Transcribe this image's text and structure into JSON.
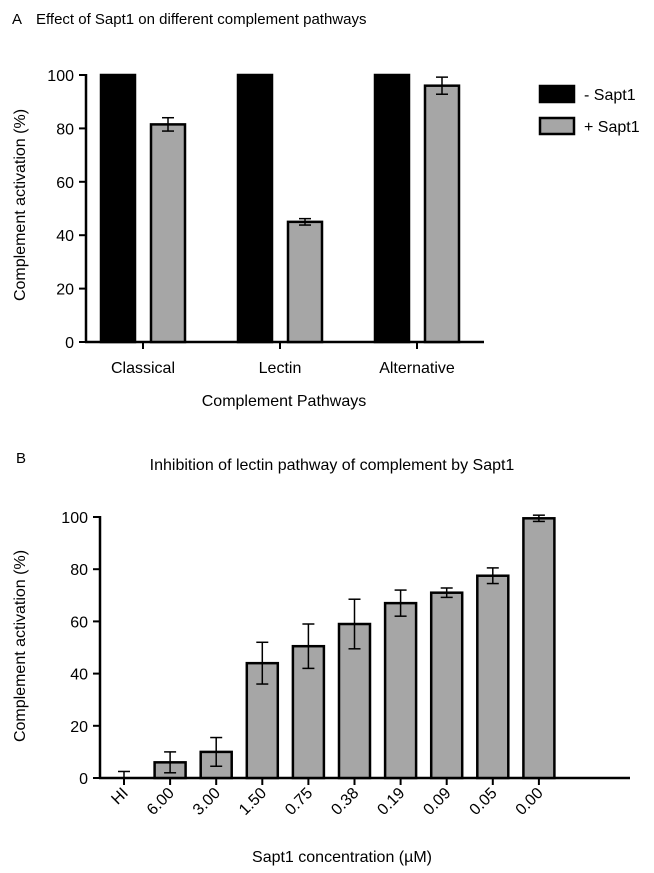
{
  "panels": [
    {
      "letter": "A",
      "chart_data": {
        "type": "bar",
        "title": "Effect of Sapt1 on different complement pathways",
        "xlabel": "Complement Pathways",
        "ylabel": "Complement activation (%)",
        "ylim": [
          0,
          100
        ],
        "yticks": [
          0,
          20,
          40,
          60,
          80,
          100
        ],
        "categories": [
          "Classical",
          "Lectin",
          "Alternative"
        ],
        "legend_position": "right",
        "series": [
          {
            "name": "- Sapt1",
            "color": "#000000",
            "values": [
              100,
              100,
              100
            ],
            "errors": [
              0,
              0,
              0
            ]
          },
          {
            "name": "+ Sapt1",
            "color": "#a6a6a6",
            "values": [
              81.5,
              45,
              96
            ],
            "errors": [
              2.5,
              1.2,
              3.2
            ]
          }
        ]
      }
    },
    {
      "letter": "B",
      "chart_data": {
        "type": "bar",
        "title": "Inhibition of lectin pathway of complement by Sapt1",
        "xlabel": "Sapt1 concentration (µM)",
        "ylabel": "Complement activation (%)",
        "ylim": [
          0,
          100
        ],
        "yticks": [
          0,
          20,
          40,
          60,
          80,
          100
        ],
        "categories": [
          "HI",
          "6.00",
          "3.00",
          "1.50",
          "0.75",
          "0.38",
          "0.19",
          "0.09",
          "0.05",
          "0.00"
        ],
        "color": "#a6a6a6",
        "values": [
          0,
          6,
          10,
          44,
          50.5,
          59,
          67,
          71,
          77.5,
          99.5
        ],
        "errors": [
          2.5,
          4,
          5.5,
          8,
          8.5,
          9.5,
          5,
          1.8,
          3,
          1.2
        ]
      }
    }
  ]
}
